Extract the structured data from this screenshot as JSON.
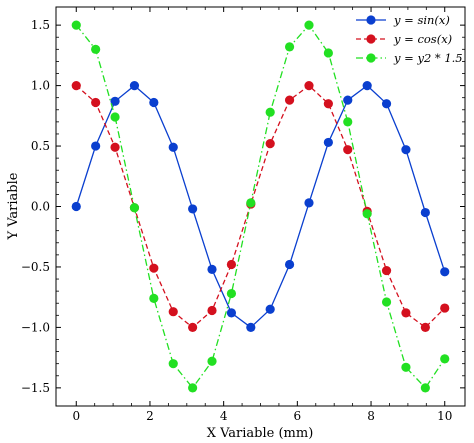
{
  "chart_data": {
    "type": "line",
    "title": "",
    "xlabel": "X Variable (mm)",
    "ylabel": "Y Variable",
    "xlim": [
      -0.55,
      10.55
    ],
    "ylim": [
      -1.65,
      1.65
    ],
    "xticks": [
      0,
      2,
      4,
      6,
      8,
      10
    ],
    "yticks": [
      1.5,
      1.0,
      0.5,
      0.0,
      -0.5,
      -1.0,
      -1.5
    ],
    "xtick_labels": [
      "0",
      "2",
      "4",
      "6",
      "8",
      "10"
    ],
    "ytick_labels": [
      "1.5",
      "1.0",
      "0.5",
      "0.0",
      "−0.5",
      "−1.0",
      "−1.5"
    ],
    "grid": false,
    "legend_position": "top-right",
    "x": [
      0,
      0.526,
      1.053,
      1.579,
      2.105,
      2.632,
      3.158,
      3.684,
      4.211,
      4.737,
      5.263,
      5.789,
      6.316,
      6.842,
      7.368,
      7.895,
      8.421,
      8.947,
      9.474,
      10.0
    ],
    "series": [
      {
        "name": "y = sin(x)",
        "color": "#0a3fcf",
        "line_style": "solid",
        "values": [
          0.0,
          0.5,
          0.87,
          1.0,
          0.86,
          0.49,
          -0.02,
          -0.52,
          -0.88,
          -1.0,
          -0.85,
          -0.48,
          0.03,
          0.53,
          0.88,
          1.0,
          0.85,
          0.47,
          -0.05,
          -0.54
        ]
      },
      {
        "name": "y = cos(x)",
        "color": "#d4101e",
        "line_style": "dashed",
        "values": [
          1.0,
          0.86,
          0.49,
          -0.01,
          -0.51,
          -0.87,
          -1.0,
          -0.86,
          -0.48,
          0.02,
          0.52,
          0.88,
          1.0,
          0.85,
          0.47,
          -0.04,
          -0.53,
          -0.88,
          -1.0,
          -0.84
        ]
      },
      {
        "name": "y = y2 * 1.5",
        "color": "#22e022",
        "line_style": "dashdot",
        "values": [
          1.5,
          1.3,
          0.74,
          -0.01,
          -0.76,
          -1.3,
          -1.5,
          -1.28,
          -0.72,
          0.03,
          0.78,
          1.32,
          1.5,
          1.27,
          0.7,
          -0.06,
          -0.79,
          -1.33,
          -1.5,
          -1.26
        ]
      }
    ]
  }
}
